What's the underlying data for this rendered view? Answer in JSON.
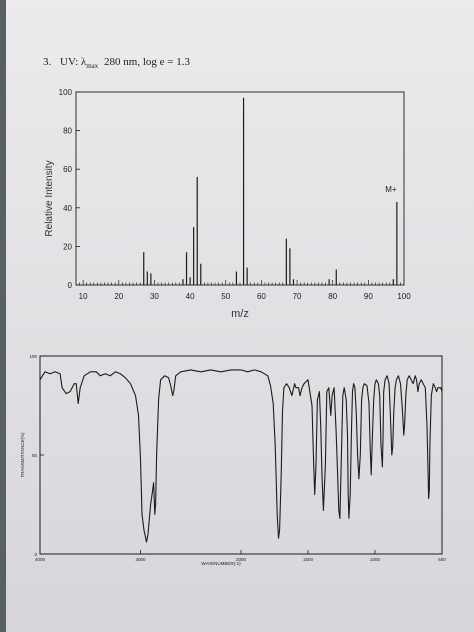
{
  "question": {
    "number": "3.",
    "label": "UV: λ",
    "subscript": "max",
    "rest": "280 nm, log e = 1.3"
  },
  "chart_data": [
    {
      "type": "bar",
      "name": "mass-spectrum",
      "xlabel": "m/z",
      "ylabel": "Relative Intensity",
      "xlim": [
        8,
        100
      ],
      "ylim": [
        0,
        100
      ],
      "xticks": [
        10,
        20,
        30,
        40,
        50,
        60,
        70,
        80,
        90,
        100
      ],
      "yticks": [
        0,
        20,
        40,
        60,
        80,
        100
      ],
      "grid": false,
      "annotation": "M+",
      "peaks": [
        {
          "mz": 27,
          "intensity": 17
        },
        {
          "mz": 28,
          "intensity": 7
        },
        {
          "mz": 29,
          "intensity": 6
        },
        {
          "mz": 38,
          "intensity": 3
        },
        {
          "mz": 39,
          "intensity": 17
        },
        {
          "mz": 40,
          "intensity": 4
        },
        {
          "mz": 41,
          "intensity": 30
        },
        {
          "mz": 42,
          "intensity": 56
        },
        {
          "mz": 43,
          "intensity": 11
        },
        {
          "mz": 53,
          "intensity": 7
        },
        {
          "mz": 55,
          "intensity": 97
        },
        {
          "mz": 56,
          "intensity": 9
        },
        {
          "mz": 67,
          "intensity": 24
        },
        {
          "mz": 68,
          "intensity": 19
        },
        {
          "mz": 69,
          "intensity": 3
        },
        {
          "mz": 79,
          "intensity": 3
        },
        {
          "mz": 81,
          "intensity": 8
        },
        {
          "mz": 97,
          "intensity": 3
        },
        {
          "mz": 98,
          "intensity": 43
        }
      ]
    },
    {
      "type": "line",
      "name": "ir-spectrum",
      "xlabel": "WAVENUMBER(-1)",
      "ylabel": "TRANSMITTANCE(%)",
      "xlim": [
        4000,
        500
      ],
      "ylim": [
        0,
        100
      ],
      "xticks": [
        4000,
        3000,
        2000,
        1500,
        1000,
        500
      ],
      "yticks": [
        0,
        50,
        100
      ],
      "grid": false,
      "points": [
        [
          4000,
          88
        ],
        [
          3950,
          92
        ],
        [
          3900,
          91
        ],
        [
          3850,
          92
        ],
        [
          3800,
          91
        ],
        [
          3780,
          84
        ],
        [
          3740,
          81
        ],
        [
          3700,
          82
        ],
        [
          3660,
          86
        ],
        [
          3640,
          86
        ],
        [
          3620,
          76
        ],
        [
          3600,
          84
        ],
        [
          3560,
          90
        ],
        [
          3500,
          92
        ],
        [
          3440,
          92
        ],
        [
          3400,
          90
        ],
        [
          3350,
          91
        ],
        [
          3300,
          90
        ],
        [
          3250,
          92
        ],
        [
          3200,
          91
        ],
        [
          3150,
          89
        ],
        [
          3100,
          86
        ],
        [
          3050,
          80
        ],
        [
          3020,
          70
        ],
        [
          3000,
          48
        ],
        [
          2985,
          20
        ],
        [
          2965,
          12
        ],
        [
          2940,
          6
        ],
        [
          2925,
          10
        ],
        [
          2900,
          25
        ],
        [
          2880,
          32
        ],
        [
          2870,
          36
        ],
        [
          2858,
          20
        ],
        [
          2850,
          25
        ],
        [
          2840,
          50
        ],
        [
          2820,
          78
        ],
        [
          2800,
          88
        ],
        [
          2760,
          90
        ],
        [
          2720,
          89
        ],
        [
          2700,
          85
        ],
        [
          2680,
          80
        ],
        [
          2670,
          82
        ],
        [
          2650,
          90
        ],
        [
          2600,
          92
        ],
        [
          2500,
          93
        ],
        [
          2400,
          92
        ],
        [
          2300,
          93
        ],
        [
          2200,
          92
        ],
        [
          2100,
          93
        ],
        [
          2000,
          93
        ],
        [
          1950,
          92
        ],
        [
          1900,
          93
        ],
        [
          1850,
          92
        ],
        [
          1800,
          90
        ],
        [
          1780,
          85
        ],
        [
          1760,
          76
        ],
        [
          1745,
          55
        ],
        [
          1730,
          20
        ],
        [
          1720,
          8
        ],
        [
          1712,
          12
        ],
        [
          1700,
          40
        ],
        [
          1690,
          72
        ],
        [
          1680,
          84
        ],
        [
          1660,
          86
        ],
        [
          1640,
          84
        ],
        [
          1620,
          80
        ],
        [
          1600,
          86
        ],
        [
          1590,
          84
        ],
        [
          1570,
          84
        ],
        [
          1560,
          80
        ],
        [
          1545,
          84
        ],
        [
          1530,
          86
        ],
        [
          1500,
          88
        ],
        [
          1470,
          75
        ],
        [
          1460,
          50
        ],
        [
          1450,
          30
        ],
        [
          1440,
          45
        ],
        [
          1430,
          78
        ],
        [
          1415,
          82
        ],
        [
          1405,
          65
        ],
        [
          1395,
          38
        ],
        [
          1385,
          22
        ],
        [
          1370,
          45
        ],
        [
          1360,
          82
        ],
        [
          1345,
          84
        ],
        [
          1330,
          70
        ],
        [
          1320,
          80
        ],
        [
          1305,
          84
        ],
        [
          1290,
          62
        ],
        [
          1280,
          42
        ],
        [
          1270,
          22
        ],
        [
          1262,
          18
        ],
        [
          1250,
          52
        ],
        [
          1240,
          80
        ],
        [
          1230,
          84
        ],
        [
          1215,
          78
        ],
        [
          1205,
          60
        ],
        [
          1200,
          30
        ],
        [
          1195,
          18
        ],
        [
          1185,
          30
        ],
        [
          1175,
          65
        ],
        [
          1168,
          82
        ],
        [
          1160,
          86
        ],
        [
          1150,
          84
        ],
        [
          1140,
          72
        ],
        [
          1130,
          50
        ],
        [
          1120,
          38
        ],
        [
          1110,
          50
        ],
        [
          1100,
          78
        ],
        [
          1090,
          84
        ],
        [
          1080,
          86
        ],
        [
          1060,
          85
        ],
        [
          1045,
          76
        ],
        [
          1035,
          52
        ],
        [
          1028,
          40
        ],
        [
          1020,
          58
        ],
        [
          1010,
          78
        ],
        [
          1000,
          86
        ],
        [
          990,
          88
        ],
        [
          975,
          86
        ],
        [
          965,
          80
        ],
        [
          955,
          55
        ],
        [
          945,
          44
        ],
        [
          940,
          58
        ],
        [
          935,
          82
        ],
        [
          925,
          88
        ],
        [
          910,
          90
        ],
        [
          895,
          86
        ],
        [
          885,
          70
        ],
        [
          875,
          50
        ],
        [
          868,
          54
        ],
        [
          860,
          72
        ],
        [
          850,
          84
        ],
        [
          840,
          88
        ],
        [
          825,
          90
        ],
        [
          810,
          86
        ],
        [
          795,
          72
        ],
        [
          785,
          60
        ],
        [
          778,
          66
        ],
        [
          770,
          80
        ],
        [
          760,
          88
        ],
        [
          745,
          90
        ],
        [
          730,
          88
        ],
        [
          715,
          86
        ],
        [
          700,
          90
        ],
        [
          690,
          88
        ],
        [
          680,
          82
        ],
        [
          670,
          86
        ],
        [
          655,
          88
        ],
        [
          640,
          86
        ],
        [
          625,
          84
        ],
        [
          612,
          65
        ],
        [
          605,
          45
        ],
        [
          600,
          28
        ],
        [
          595,
          32
        ],
        [
          590,
          55
        ],
        [
          580,
          80
        ],
        [
          565,
          86
        ],
        [
          550,
          84
        ],
        [
          540,
          82
        ],
        [
          530,
          84
        ],
        [
          510,
          84
        ],
        [
          500,
          82
        ]
      ]
    }
  ],
  "ms_text": {
    "annotation": "M+",
    "xlabel": "m/z",
    "ylabel": "Relative Intensity",
    "xticks": [
      "10",
      "20",
      "30",
      "40",
      "50",
      "60",
      "70",
      "80",
      "90",
      "100"
    ],
    "yticks": [
      "0",
      "20",
      "40",
      "60",
      "80",
      "100"
    ]
  },
  "ir_text": {
    "xlabel": "WAVENUMBER(-1)",
    "ylabel": "TRANSMITTANCE(%)",
    "xticks": [
      "4000",
      "3000",
      "2000",
      "1500",
      "1000",
      "500"
    ],
    "yticks": [
      "0",
      "50",
      "100"
    ]
  },
  "colors": {
    "ink": "#1c1c1c",
    "paper": "#e6e5e8",
    "background": "#5a5f63"
  }
}
